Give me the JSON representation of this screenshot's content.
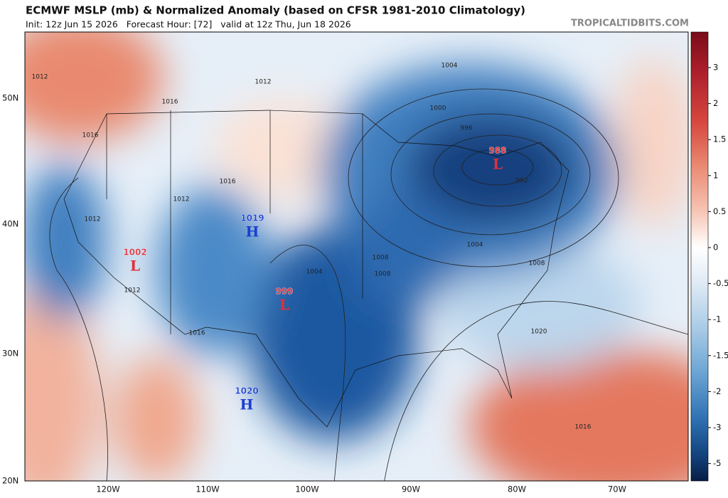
{
  "header": {
    "title": "ECMWF MSLP (mb) & Normalized Anomaly (based on CFSR 1981-2010 Climatology)",
    "subtitle": "Init: 12z Jun 15 2026   Forecast Hour: [72]   valid at 12z Thu, Jun 18 2026",
    "site": "TROPICALTIDBITS.COM"
  },
  "map": {
    "lat_labels": [
      "50N",
      "40N",
      "30N",
      "20N"
    ],
    "lon_labels": [
      "120W",
      "110W",
      "100W",
      "90W",
      "80W",
      "70W"
    ],
    "centers": [
      {
        "value": "988",
        "letter": "L"
      },
      {
        "value": "1019",
        "letter": "H"
      },
      {
        "value": "1002",
        "letter": "L"
      },
      {
        "value": "999",
        "letter": "L"
      },
      {
        "value": "1020",
        "letter": "H"
      }
    ],
    "isobar_labels": [
      "1004",
      "1000",
      "996",
      "992",
      "1004",
      "1008",
      "1012",
      "1016",
      "1020",
      "1012",
      "1016",
      "1016",
      "1012",
      "1008",
      "1012",
      "1016",
      "1004",
      "1008",
      "1012",
      "1016"
    ]
  },
  "colorbar": {
    "ticks": [
      3,
      2,
      1.5,
      1,
      0.5,
      0,
      -0.5,
      -1,
      -1.5,
      -2,
      -3,
      -5
    ]
  }
}
